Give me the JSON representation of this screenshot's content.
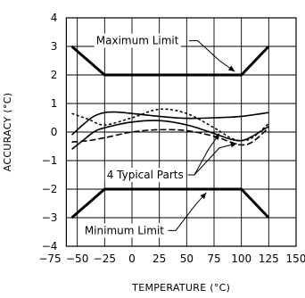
{
  "chart_data": {
    "type": "line",
    "xlabel": "TEMPERATURE (°C)",
    "ylabel": "ACCURACY (°C)",
    "xlim": [
      -75,
      150
    ],
    "ylim": [
      -4,
      4
    ],
    "x_ticks": [
      -75,
      -50,
      -25,
      0,
      25,
      50,
      75,
      100,
      125,
      150
    ],
    "x_tick_labels": [
      "−75",
      "−50",
      "−25",
      "0",
      "25",
      "50",
      "75",
      "100",
      "125",
      "150"
    ],
    "y_ticks": [
      4,
      3,
      2,
      1,
      0,
      -1,
      -2,
      -3,
      -4
    ],
    "y_tick_labels": [
      "4",
      "3",
      "2",
      "1",
      "0",
      "−1",
      "−2",
      "−3",
      "−4"
    ],
    "grid": true,
    "series": [
      {
        "x": [
          -55,
          -25,
          100,
          125
        ],
        "y": [
          3,
          2,
          2,
          3
        ],
        "style": "thick-solid"
      },
      {
        "x": [
          -55,
          -25,
          100,
          125
        ],
        "y": [
          -3,
          -2,
          -2,
          -3
        ],
        "style": "thick-solid"
      },
      {
        "x": [
          -55,
          -45,
          -35,
          -25,
          -15,
          0,
          25,
          50,
          75,
          100,
          125
        ],
        "y": [
          -0.1,
          0.25,
          0.55,
          0.68,
          0.7,
          0.65,
          0.55,
          0.48,
          0.5,
          0.55,
          0.68
        ],
        "style": "solid"
      },
      {
        "x": [
          -55,
          -45,
          -35,
          -25,
          0,
          25,
          50,
          75,
          90,
          100,
          110,
          125
        ],
        "y": [
          -0.6,
          -0.3,
          0.0,
          0.15,
          0.35,
          0.4,
          0.25,
          -0.05,
          -0.25,
          -0.3,
          -0.15,
          0.2
        ],
        "style": "solid"
      },
      {
        "x": [
          -55,
          -40,
          -25,
          0,
          25,
          50,
          75,
          90,
          100,
          110,
          125
        ],
        "y": [
          0.65,
          0.45,
          0.25,
          0.5,
          0.8,
          0.65,
          0.15,
          -0.2,
          -0.3,
          -0.2,
          0.3
        ],
        "style": "short-dash"
      },
      {
        "x": [
          -55,
          -40,
          -25,
          0,
          25,
          50,
          75,
          90,
          100,
          110,
          125
        ],
        "y": [
          -0.35,
          -0.3,
          -0.2,
          0.0,
          0.08,
          0.05,
          -0.15,
          -0.35,
          -0.45,
          -0.35,
          0.15
        ],
        "style": "long-dash"
      }
    ],
    "annotations": [
      {
        "text": "Maximum Limit"
      },
      {
        "text": "4 Typical Parts"
      },
      {
        "text": "Minimum Limit"
      }
    ]
  }
}
